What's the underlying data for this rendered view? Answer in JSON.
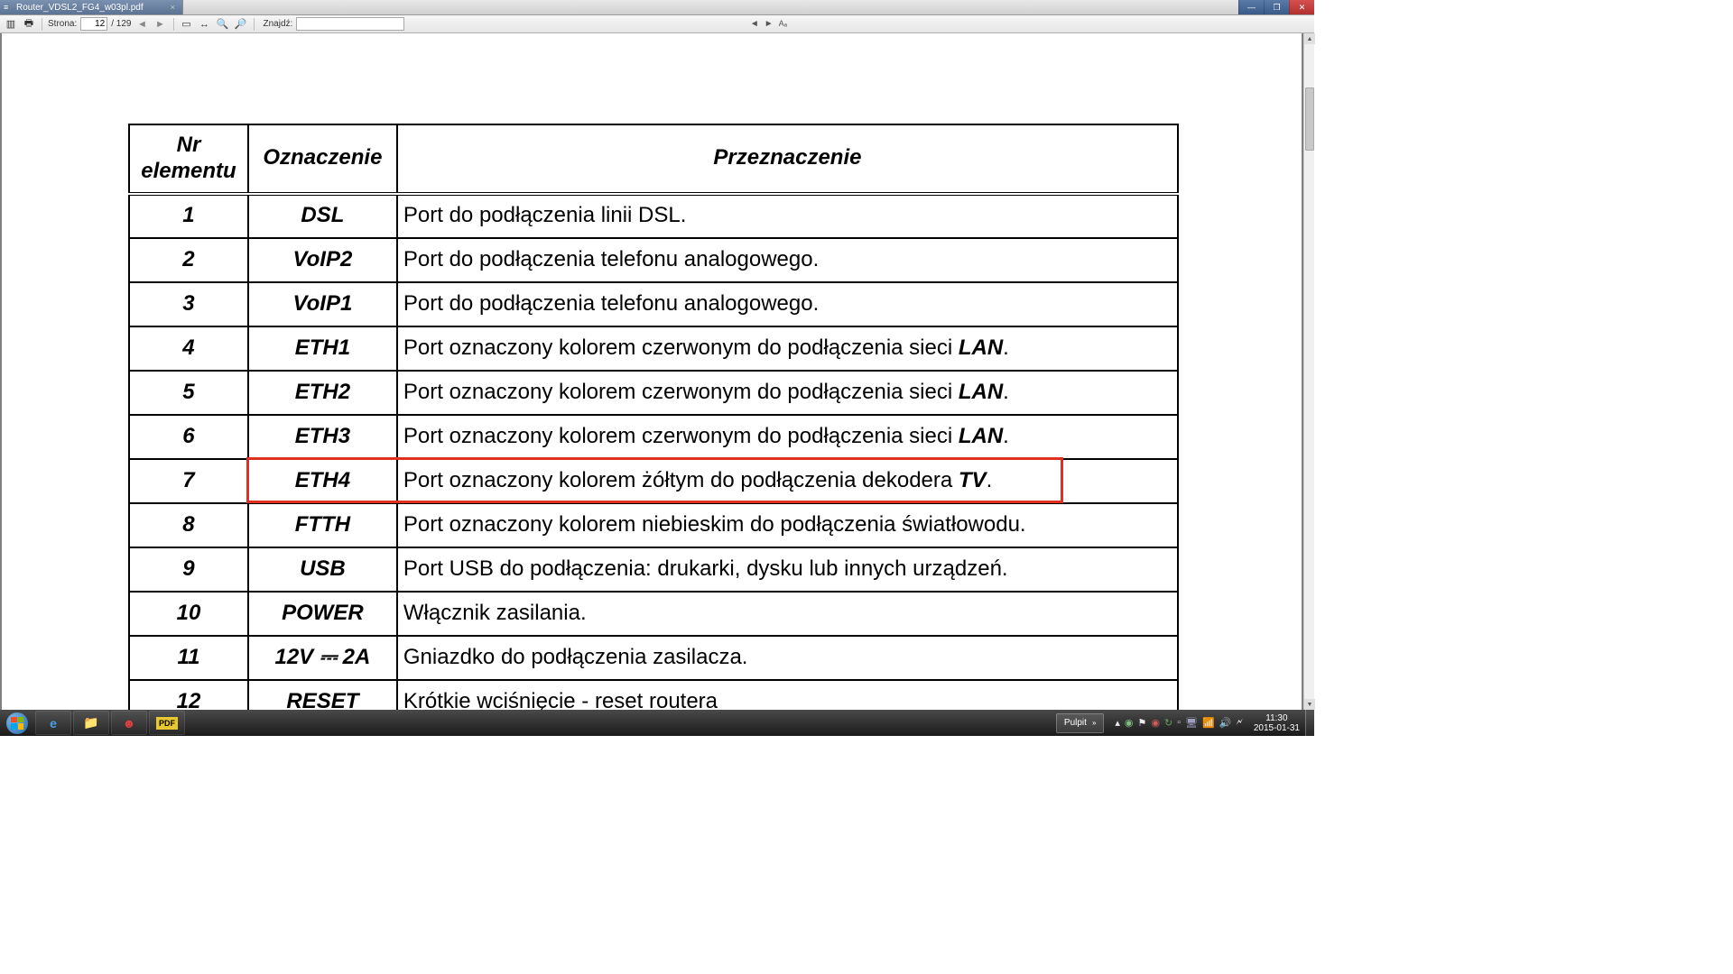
{
  "titlebar": {
    "tab_title": "Router_VDSL2_FG4_w03pl.pdf"
  },
  "toolbar": {
    "page_label": "Strona:",
    "page_current": "12",
    "page_total": "/ 129",
    "find_label": "Znajdź:"
  },
  "table": {
    "headers": {
      "nr": "Nr elementu",
      "ozn": "Oznaczenie",
      "prz": "Przeznaczenie"
    },
    "rows": [
      {
        "nr": "1",
        "ozn": "DSL",
        "prz": "Port do podłączenia linii DSL."
      },
      {
        "nr": "2",
        "ozn": "VoIP2",
        "prz": "Port do podłączenia telefonu analogowego."
      },
      {
        "nr": "3",
        "ozn": "VoIP1",
        "prz": "Port do podłączenia telefonu analogowego."
      },
      {
        "nr": "4",
        "ozn": "ETH1",
        "prz_pre": "Port oznaczony kolorem czerwonym do podłączenia sieci ",
        "prz_bold": "LAN",
        "prz_post": "."
      },
      {
        "nr": "5",
        "ozn": "ETH2",
        "prz_pre": "Port oznaczony kolorem czerwonym do podłączenia sieci ",
        "prz_bold": "LAN",
        "prz_post": "."
      },
      {
        "nr": "6",
        "ozn": "ETH3",
        "prz_pre": "Port oznaczony kolorem czerwonym do podłączenia sieci ",
        "prz_bold": "LAN",
        "prz_post": "."
      },
      {
        "nr": "7",
        "ozn": "ETH4",
        "prz_pre": "Port oznaczony kolorem żółtym do podłączenia dekodera ",
        "prz_bold": "TV",
        "prz_post": "."
      },
      {
        "nr": "8",
        "ozn": "FTTH",
        "prz": "Port oznaczony kolorem niebieskim do podłączenia światłowodu."
      },
      {
        "nr": "9",
        "ozn": "USB",
        "prz": "Port USB do podłączenia: drukarki, dysku lub innych urządzeń."
      },
      {
        "nr": "10",
        "ozn": "POWER",
        "prz": "Włącznik zasilania."
      },
      {
        "nr": "11",
        "ozn": "12V ⎓ 2A",
        "prz": "Gniazdko do podłączenia zasilacza."
      },
      {
        "nr": "12",
        "ozn": "RESET",
        "prz": "Krótkie wciśnięcie - reset routera"
      }
    ],
    "highlight_row_index": 6,
    "highlight_color": "#e03020"
  },
  "systray": {
    "pulpit": "Pulpit",
    "time": "11:30",
    "date": "2015-01-31"
  }
}
